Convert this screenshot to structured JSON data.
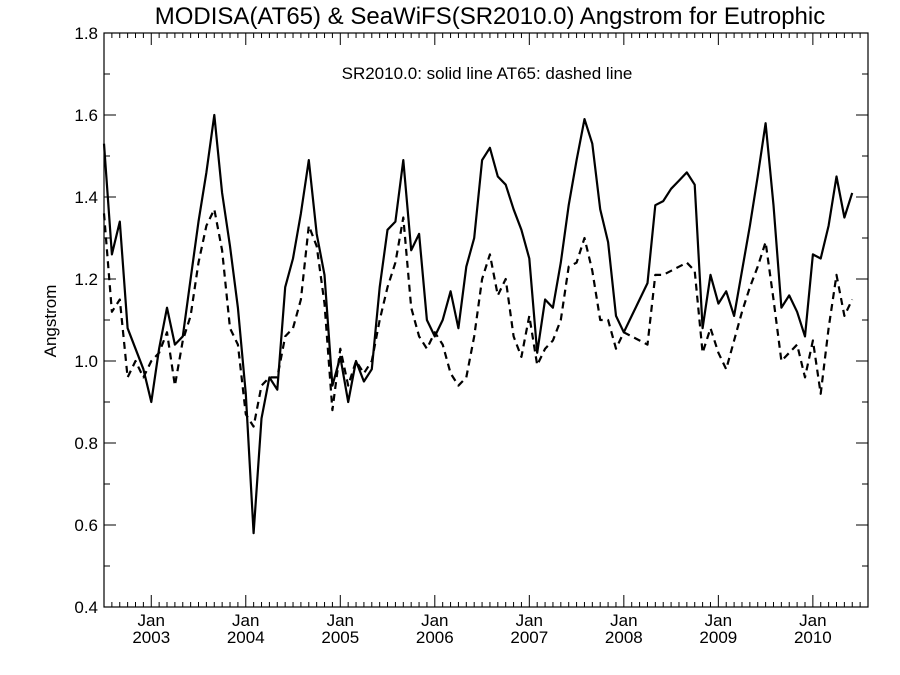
{
  "chart_data": {
    "type": "line",
    "title": "MODISA(AT65) & SeaWiFS(SR2010.0)  Angstrom for Eutrophic",
    "annotation": "SR2010.0: solid line   AT65: dashed line",
    "ylabel": "Angstrom",
    "xlabel": "",
    "ylim": [
      0.4,
      1.8
    ],
    "y_ticks": [
      "0.4",
      "0.6",
      "0.8",
      "1.0",
      "1.2",
      "1.4",
      "1.6",
      "1.8"
    ],
    "x_range": [
      "2002-07",
      "2010-08"
    ],
    "x_ticks": [
      {
        "month": "Jan",
        "year": "2003",
        "date": "2003-01"
      },
      {
        "month": "Jan",
        "year": "2004",
        "date": "2004-01"
      },
      {
        "month": "Jan",
        "year": "2005",
        "date": "2005-01"
      },
      {
        "month": "Jan",
        "year": "2006",
        "date": "2006-01"
      },
      {
        "month": "Jan",
        "year": "2007",
        "date": "2007-01"
      },
      {
        "month": "Jan",
        "year": "2008",
        "date": "2008-01"
      },
      {
        "month": "Jan",
        "year": "2009",
        "date": "2009-01"
      },
      {
        "month": "Jan",
        "year": "2010",
        "date": "2010-01"
      }
    ],
    "grid": false,
    "series": [
      {
        "name": "SR2010.0",
        "style": "solid",
        "color": "#000000",
        "points": [
          [
            "2002-07",
            1.53
          ],
          [
            "2002-08",
            1.26
          ],
          [
            "2002-09",
            1.34
          ],
          [
            "2002-10",
            1.08
          ],
          [
            "2002-11",
            1.03
          ],
          [
            "2002-12",
            0.98
          ],
          [
            "2003-01",
            0.9
          ],
          [
            "2003-02",
            1.03
          ],
          [
            "2003-03",
            1.13
          ],
          [
            "2003-04",
            1.04
          ],
          [
            "2003-05",
            1.06
          ],
          [
            "2003-06",
            1.2
          ],
          [
            "2003-07",
            1.34
          ],
          [
            "2003-08",
            1.46
          ],
          [
            "2003-09",
            1.6
          ],
          [
            "2003-10",
            1.41
          ],
          [
            "2003-11",
            1.28
          ],
          [
            "2003-12",
            1.13
          ],
          [
            "2004-01",
            0.92
          ],
          [
            "2004-02",
            0.58
          ],
          [
            "2004-03",
            0.86
          ],
          [
            "2004-04",
            0.96
          ],
          [
            "2004-05",
            0.93
          ],
          [
            "2004-06",
            1.18
          ],
          [
            "2004-07",
            1.25
          ],
          [
            "2004-08",
            1.36
          ],
          [
            "2004-09",
            1.49
          ],
          [
            "2004-10",
            1.31
          ],
          [
            "2004-11",
            1.21
          ],
          [
            "2004-12",
            0.94
          ],
          [
            "2005-01",
            1.01
          ],
          [
            "2005-02",
            0.9
          ],
          [
            "2005-03",
            1.0
          ],
          [
            "2005-04",
            0.95
          ],
          [
            "2005-05",
            0.98
          ],
          [
            "2005-06",
            1.18
          ],
          [
            "2005-07",
            1.32
          ],
          [
            "2005-08",
            1.34
          ],
          [
            "2005-09",
            1.49
          ],
          [
            "2005-10",
            1.27
          ],
          [
            "2005-11",
            1.31
          ],
          [
            "2005-12",
            1.1
          ],
          [
            "2006-01",
            1.06
          ],
          [
            "2006-02",
            1.1
          ],
          [
            "2006-03",
            1.17
          ],
          [
            "2006-04",
            1.08
          ],
          [
            "2006-05",
            1.23
          ],
          [
            "2006-06",
            1.3
          ],
          [
            "2006-07",
            1.49
          ],
          [
            "2006-08",
            1.52
          ],
          [
            "2006-09",
            1.45
          ],
          [
            "2006-10",
            1.43
          ],
          [
            "2006-11",
            1.37
          ],
          [
            "2006-12",
            1.32
          ],
          [
            "2007-01",
            1.25
          ],
          [
            "2007-02",
            1.02
          ],
          [
            "2007-03",
            1.15
          ],
          [
            "2007-04",
            1.13
          ],
          [
            "2007-05",
            1.24
          ],
          [
            "2007-06",
            1.38
          ],
          [
            "2007-07",
            1.49
          ],
          [
            "2007-08",
            1.59
          ],
          [
            "2007-09",
            1.53
          ],
          [
            "2007-10",
            1.37
          ],
          [
            "2007-11",
            1.29
          ],
          [
            "2007-12",
            1.11
          ],
          [
            "2008-01",
            1.07
          ],
          [
            "2008-02",
            1.11
          ],
          [
            "2008-03",
            1.15
          ],
          [
            "2008-04",
            1.19
          ],
          [
            "2008-05",
            1.38
          ],
          [
            "2008-06",
            1.39
          ],
          [
            "2008-07",
            1.42
          ],
          [
            "2008-08",
            1.44
          ],
          [
            "2008-09",
            1.46
          ],
          [
            "2008-10",
            1.43
          ],
          [
            "2008-11",
            1.08
          ],
          [
            "2008-12",
            1.21
          ],
          [
            "2009-01",
            1.14
          ],
          [
            "2009-02",
            1.17
          ],
          [
            "2009-03",
            1.11
          ],
          [
            "2009-04",
            1.22
          ],
          [
            "2009-05",
            1.33
          ],
          [
            "2009-06",
            1.45
          ],
          [
            "2009-07",
            1.58
          ],
          [
            "2009-08",
            1.38
          ],
          [
            "2009-09",
            1.13
          ],
          [
            "2009-10",
            1.16
          ],
          [
            "2009-11",
            1.12
          ],
          [
            "2009-12",
            1.06
          ],
          [
            "2010-01",
            1.26
          ],
          [
            "2010-02",
            1.25
          ],
          [
            "2010-03",
            1.33
          ],
          [
            "2010-04",
            1.45
          ],
          [
            "2010-05",
            1.35
          ],
          [
            "2010-06",
            1.41
          ]
        ]
      },
      {
        "name": "AT65",
        "style": "dashed",
        "color": "#000000",
        "points": [
          [
            "2002-07",
            1.36
          ],
          [
            "2002-08",
            1.12
          ],
          [
            "2002-09",
            1.15
          ],
          [
            "2002-10",
            0.96
          ],
          [
            "2002-11",
            1.0
          ],
          [
            "2002-12",
            0.96
          ],
          [
            "2003-01",
            1.0
          ],
          [
            "2003-02",
            1.02
          ],
          [
            "2003-03",
            1.07
          ],
          [
            "2003-04",
            0.94
          ],
          [
            "2003-05",
            1.05
          ],
          [
            "2003-06",
            1.11
          ],
          [
            "2003-07",
            1.24
          ],
          [
            "2003-08",
            1.33
          ],
          [
            "2003-09",
            1.37
          ],
          [
            "2003-10",
            1.27
          ],
          [
            "2003-11",
            1.08
          ],
          [
            "2003-12",
            1.04
          ],
          [
            "2004-01",
            0.87
          ],
          [
            "2004-02",
            0.84
          ],
          [
            "2004-03",
            0.94
          ],
          [
            "2004-04",
            0.96
          ],
          [
            "2004-05",
            0.96
          ],
          [
            "2004-06",
            1.06
          ],
          [
            "2004-07",
            1.08
          ],
          [
            "2004-08",
            1.15
          ],
          [
            "2004-09",
            1.33
          ],
          [
            "2004-10",
            1.28
          ],
          [
            "2004-11",
            1.14
          ],
          [
            "2004-12",
            0.88
          ],
          [
            "2005-01",
            1.03
          ],
          [
            "2005-02",
            0.94
          ],
          [
            "2005-03",
            1.0
          ],
          [
            "2005-04",
            0.97
          ],
          [
            "2005-05",
            1.0
          ],
          [
            "2005-06",
            1.1
          ],
          [
            "2005-07",
            1.18
          ],
          [
            "2005-08",
            1.24
          ],
          [
            "2005-09",
            1.35
          ],
          [
            "2005-10",
            1.13
          ],
          [
            "2005-11",
            1.06
          ],
          [
            "2005-12",
            1.03
          ],
          [
            "2006-01",
            1.07
          ],
          [
            "2006-02",
            1.04
          ],
          [
            "2006-03",
            0.97
          ],
          [
            "2006-04",
            0.94
          ],
          [
            "2006-05",
            0.96
          ],
          [
            "2006-06",
            1.06
          ],
          [
            "2006-07",
            1.2
          ],
          [
            "2006-08",
            1.26
          ],
          [
            "2006-09",
            1.16
          ],
          [
            "2006-10",
            1.2
          ],
          [
            "2006-11",
            1.06
          ],
          [
            "2006-12",
            1.01
          ],
          [
            "2007-01",
            1.11
          ],
          [
            "2007-02",
            0.99
          ],
          [
            "2007-03",
            1.03
          ],
          [
            "2007-04",
            1.05
          ],
          [
            "2007-05",
            1.1
          ],
          [
            "2007-06",
            1.23
          ],
          [
            "2007-07",
            1.24
          ],
          [
            "2007-08",
            1.3
          ],
          [
            "2007-09",
            1.22
          ],
          [
            "2007-10",
            1.1
          ],
          [
            "2007-11",
            1.1
          ],
          [
            "2007-12",
            1.03
          ],
          [
            "2008-01",
            1.07
          ],
          [
            "2008-02",
            1.06
          ],
          [
            "2008-03",
            1.05
          ],
          [
            "2008-04",
            1.04
          ],
          [
            "2008-05",
            1.21
          ],
          [
            "2008-06",
            1.21
          ],
          [
            "2008-07",
            1.22
          ],
          [
            "2008-08",
            1.23
          ],
          [
            "2008-09",
            1.24
          ],
          [
            "2008-10",
            1.22
          ],
          [
            "2008-11",
            1.02
          ],
          [
            "2008-12",
            1.08
          ],
          [
            "2009-01",
            1.02
          ],
          [
            "2009-02",
            0.98
          ],
          [
            "2009-03",
            1.05
          ],
          [
            "2009-04",
            1.12
          ],
          [
            "2009-05",
            1.18
          ],
          [
            "2009-06",
            1.23
          ],
          [
            "2009-07",
            1.29
          ],
          [
            "2009-08",
            1.15
          ],
          [
            "2009-09",
            1.0
          ],
          [
            "2009-10",
            1.02
          ],
          [
            "2009-11",
            1.04
          ],
          [
            "2009-12",
            0.96
          ],
          [
            "2010-01",
            1.05
          ],
          [
            "2010-02",
            0.92
          ],
          [
            "2010-03",
            1.08
          ],
          [
            "2010-04",
            1.21
          ],
          [
            "2010-05",
            1.11
          ],
          [
            "2010-06",
            1.15
          ]
        ]
      }
    ]
  }
}
